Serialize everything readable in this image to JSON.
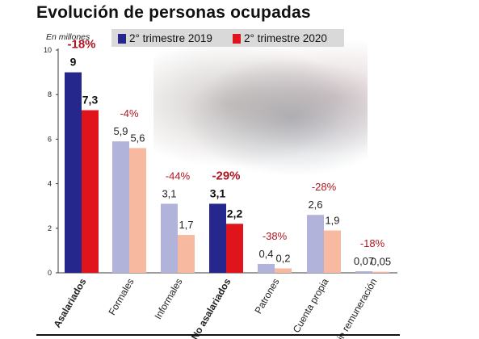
{
  "title": "Evolución de personas ocupadas",
  "unit_label": "En millones",
  "colors": {
    "main_2019": "#25278c",
    "main_2020": "#e0141b",
    "sub_2019": "#b1b3da",
    "sub_2020": "#f7b99f",
    "pct": "#b0161f",
    "axis": "#3a3a3a"
  },
  "chart_data": {
    "type": "bar",
    "title": "Evolución de personas ocupadas",
    "ylabel": "En millones",
    "ylim": [
      0,
      10
    ],
    "yticks": [
      "0",
      "2",
      "4",
      "6",
      "8",
      "10"
    ],
    "grid": false,
    "legend_position": "top",
    "categories": [
      "Asalariados",
      "Formales",
      "Informales",
      "No asalariados",
      "Patrones",
      "Cuenta propia",
      "Sin remuneración"
    ],
    "bold_categories": [
      true,
      false,
      false,
      true,
      false,
      false,
      false
    ],
    "series": [
      {
        "name": "2° trimestre 2019",
        "values": [
          9,
          5.9,
          3.1,
          3.1,
          0.4,
          2.6,
          0.07
        ]
      },
      {
        "name": "2° trimestre 2020",
        "values": [
          7.3,
          5.6,
          1.7,
          2.2,
          0.2,
          1.9,
          0.05
        ]
      }
    ],
    "value_labels_2019": [
      "9",
      "5,9",
      "3,1",
      "3,1",
      "0,4",
      "2,6",
      "0,07"
    ],
    "value_labels_2020": [
      "7,3",
      "5,6",
      "1,7",
      "2,2",
      "0,2",
      "1,9",
      "0,05"
    ],
    "change_labels": [
      "-18%",
      "-4%",
      "-44%",
      "-29%",
      "-38%",
      "-28%",
      "-18%"
    ]
  }
}
